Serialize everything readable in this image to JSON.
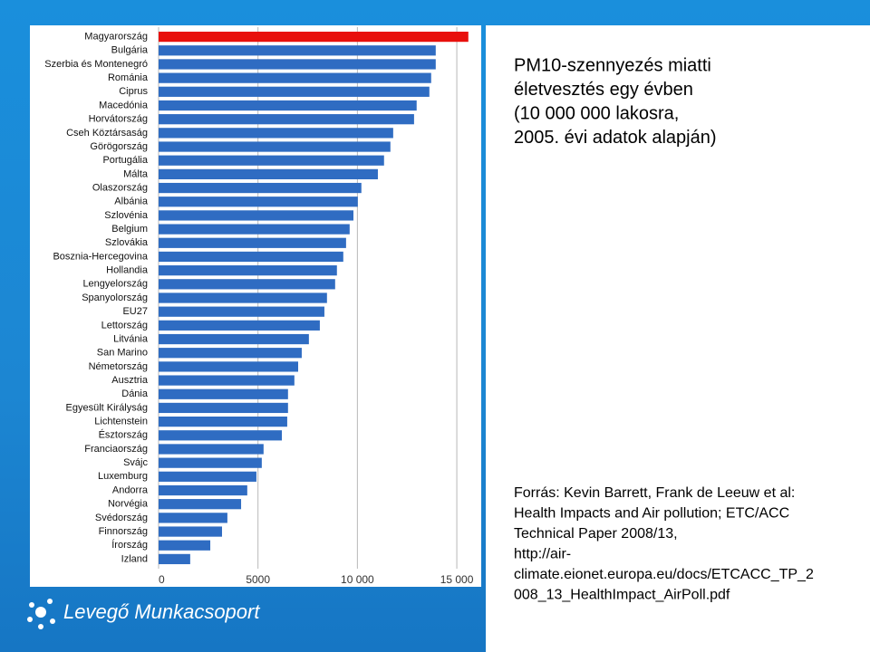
{
  "chart_data": {
    "type": "hbar",
    "categories": [
      "Magyarország",
      "Bulgária",
      "Szerbia és Montenegró",
      "Románia",
      "Ciprus",
      "Macedónia",
      "Horvátország",
      "Cseh Köztársaság",
      "Görögország",
      "Portugália",
      "Málta",
      "Olaszország",
      "Albánia",
      "Szlovénia",
      "Belgium",
      "Szlovákia",
      "Bosznia-Hercegovina",
      "Hollandia",
      "Lengyelország",
      "Spanyolország",
      "EU27",
      "Lettország",
      "Litvánia",
      "San Marino",
      "Németország",
      "Ausztria",
      "Dánia",
      "Egyesült Királyság",
      "Lichtenstein",
      "Észtország",
      "Franciaország",
      "Svájc",
      "Luxemburg",
      "Andorra",
      "Norvégia",
      "Svédország",
      "Finnország",
      "Írország",
      "Izland"
    ],
    "values": [
      15580,
      13940,
      13940,
      13710,
      13620,
      12980,
      12850,
      11800,
      11660,
      11340,
      11030,
      10200,
      10020,
      9800,
      9610,
      9430,
      9290,
      8970,
      8880,
      8470,
      8340,
      8110,
      7560,
      7200,
      7020,
      6830,
      6510,
      6510,
      6470,
      6200,
      5280,
      5190,
      4920,
      4460,
      4150,
      3460,
      3190,
      2600,
      1590
    ],
    "color": "#2f6cc2",
    "highlight_color": "#e8100c",
    "highlight": [
      0
    ],
    "xlim": [
      0,
      16000
    ],
    "xticks": [
      0,
      5000,
      {
        "value": 10000,
        "label": "10 000"
      },
      {
        "value": 15000,
        "label": "15 000"
      }
    ],
    "grid": true
  },
  "slide": {
    "title": [
      "PM10-szennyezés miatti",
      "életvesztés egy évben",
      "(10 000 000 lakosra,",
      "2005. évi adatok alapján)"
    ],
    "source": [
      "Forrás: Kevin Barrett, Frank de Leeuw et al:",
      "Health Impacts and Air pollution; ETC/ACC",
      "Technical Paper 2008/13,",
      "http://air-",
      "climate.eionet.europa.eu/docs/ETCACC_TP_2",
      "008_13_HealthImpact_AirPoll.pdf"
    ],
    "logo": "Levegő Munkacsoport"
  }
}
